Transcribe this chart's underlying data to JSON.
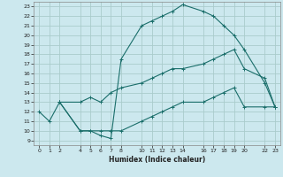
{
  "xlabel": "Humidex (Indice chaleur)",
  "background_color": "#cce8ee",
  "grid_color": "#aacccc",
  "line_color": "#1a6e6a",
  "xlim": [
    -0.5,
    23.5
  ],
  "ylim": [
    8.5,
    23.5
  ],
  "xticks": [
    0,
    1,
    2,
    4,
    5,
    6,
    7,
    8,
    10,
    11,
    12,
    13,
    14,
    16,
    17,
    18,
    19,
    20,
    22,
    23
  ],
  "yticks": [
    9,
    10,
    11,
    12,
    13,
    14,
    15,
    16,
    17,
    18,
    19,
    20,
    21,
    22,
    23
  ],
  "curve1_x": [
    0,
    1,
    2,
    4,
    5,
    6,
    7,
    8,
    10,
    11,
    12,
    13,
    14,
    16,
    17,
    18,
    19,
    20,
    22,
    23
  ],
  "curve1_y": [
    12,
    11,
    13,
    10,
    10,
    9.5,
    9.2,
    17.5,
    21,
    21.5,
    22,
    22.5,
    23.2,
    22.5,
    22,
    21,
    20,
    18.5,
    15,
    12.5
  ],
  "curve2_x": [
    2,
    4,
    5,
    6,
    7,
    8,
    10,
    11,
    12,
    13,
    14,
    16,
    17,
    18,
    19,
    20,
    22,
    23
  ],
  "curve2_y": [
    13,
    13,
    13.5,
    13,
    14,
    14.5,
    15,
    15.5,
    16,
    16.5,
    16.5,
    17,
    17.5,
    18,
    18.5,
    16.5,
    15.5,
    12.5
  ],
  "curve3_x": [
    2,
    4,
    5,
    6,
    7,
    8,
    10,
    11,
    12,
    13,
    14,
    16,
    17,
    18,
    19,
    20,
    22,
    23
  ],
  "curve3_y": [
    13,
    10,
    10,
    10,
    10,
    10,
    11,
    11.5,
    12,
    12.5,
    13,
    13,
    13.5,
    14,
    14.5,
    12.5,
    12.5,
    12.5
  ]
}
